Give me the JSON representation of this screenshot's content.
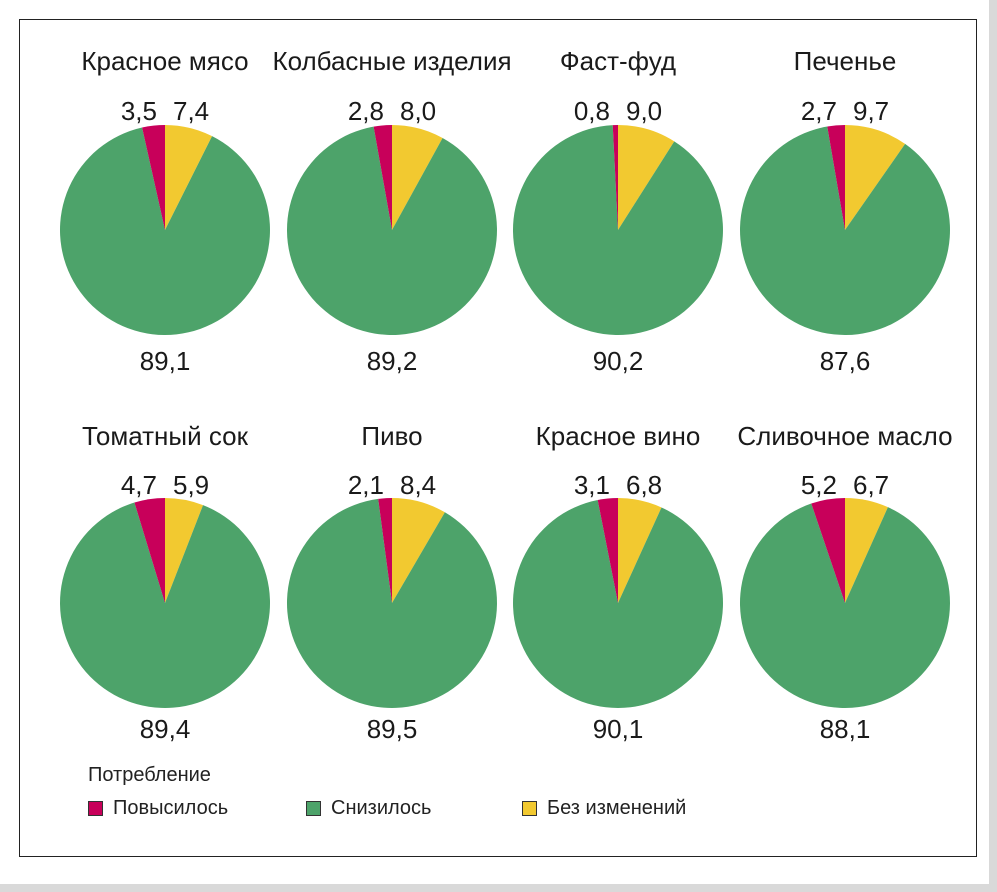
{
  "chart_data": [
    {
      "type": "pie",
      "title": "Красное мясо",
      "slices": [
        {
          "key": "up",
          "value": 3.5,
          "label": "3,5"
        },
        {
          "key": "same",
          "value": 7.4,
          "label": "7,4"
        },
        {
          "key": "down",
          "value": 89.1,
          "label": "89,1"
        }
      ]
    },
    {
      "type": "pie",
      "title": "Колбасные изделия",
      "slices": [
        {
          "key": "up",
          "value": 2.8,
          "label": "2,8"
        },
        {
          "key": "same",
          "value": 8.0,
          "label": "8,0"
        },
        {
          "key": "down",
          "value": 89.2,
          "label": "89,2"
        }
      ]
    },
    {
      "type": "pie",
      "title": "Фаст-фуд",
      "slices": [
        {
          "key": "up",
          "value": 0.8,
          "label": "0,8"
        },
        {
          "key": "same",
          "value": 9.0,
          "label": "9,0"
        },
        {
          "key": "down",
          "value": 90.2,
          "label": "90,2"
        }
      ]
    },
    {
      "type": "pie",
      "title": "Печенье",
      "slices": [
        {
          "key": "up",
          "value": 2.7,
          "label": "2,7"
        },
        {
          "key": "same",
          "value": 9.7,
          "label": "9,7"
        },
        {
          "key": "down",
          "value": 87.6,
          "label": "87,6"
        }
      ]
    },
    {
      "type": "pie",
      "title": "Томатный сок",
      "slices": [
        {
          "key": "up",
          "value": 4.7,
          "label": "4,7"
        },
        {
          "key": "same",
          "value": 5.9,
          "label": "5,9"
        },
        {
          "key": "down",
          "value": 89.4,
          "label": "89,4"
        }
      ]
    },
    {
      "type": "pie",
      "title": "Пиво",
      "slices": [
        {
          "key": "up",
          "value": 2.1,
          "label": "2,1"
        },
        {
          "key": "same",
          "value": 8.4,
          "label": "8,4"
        },
        {
          "key": "down",
          "value": 89.5,
          "label": "89,5"
        }
      ]
    },
    {
      "type": "pie",
      "title": "Красное вино",
      "slices": [
        {
          "key": "up",
          "value": 3.1,
          "label": "3,1"
        },
        {
          "key": "same",
          "value": 6.8,
          "label": "6,8"
        },
        {
          "key": "down",
          "value": 90.1,
          "label": "90,1"
        }
      ]
    },
    {
      "type": "pie",
      "title": "Сливочное масло",
      "slices": [
        {
          "key": "up",
          "value": 5.2,
          "label": "5,2"
        },
        {
          "key": "same",
          "value": 6.7,
          "label": "6,7"
        },
        {
          "key": "down",
          "value": 88.1,
          "label": "88,1"
        }
      ]
    }
  ],
  "legend": {
    "title": "Потребление",
    "items": [
      {
        "key": "up",
        "label": "Повысилось",
        "color": "#c8005a"
      },
      {
        "key": "down",
        "label": "Снизилось",
        "color": "#4da36a"
      },
      {
        "key": "same",
        "label": "Без изменений",
        "color": "#f2c930"
      }
    ]
  }
}
